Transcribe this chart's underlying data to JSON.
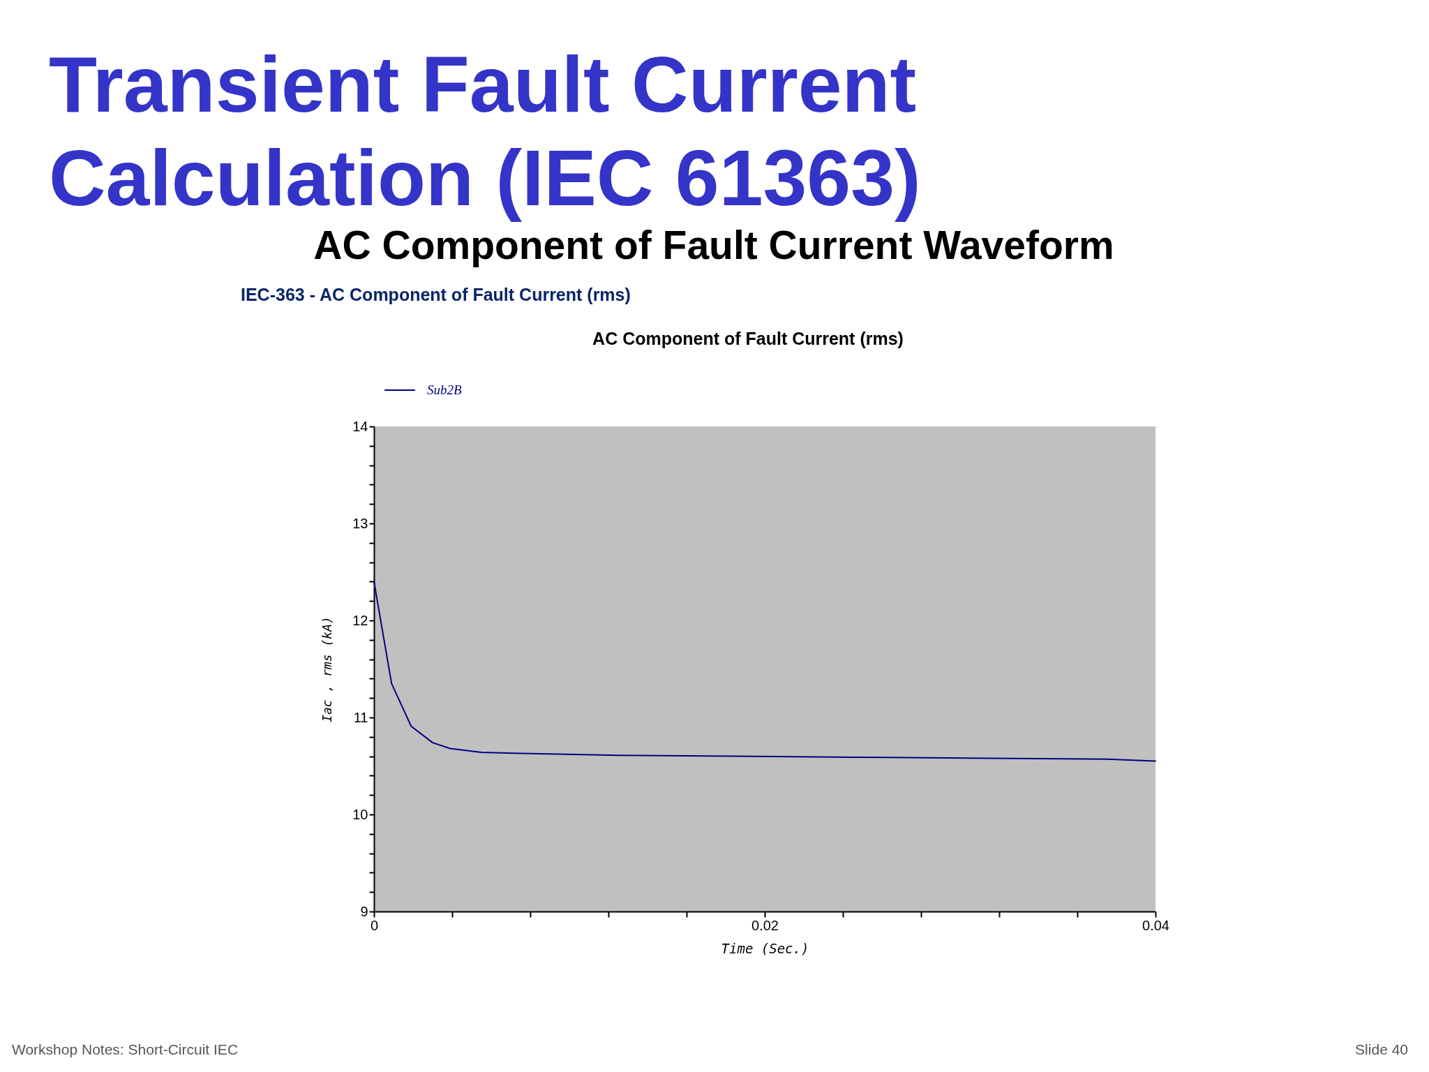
{
  "chart_data": {
    "type": "line",
    "title": "Transient Fault Current Calculation (IEC 61363)",
    "subtitle": "AC Component of Fault Current Waveform",
    "xlabel": "Time (Sec.)",
    "ylabel": "Iac , rms (kA)",
    "annotations": [
      "IEC-363 - AC Component of Fault Current (rms)",
      "AC Component of Fault Current (rms)",
      "Workshop Notes: Short-Circuit IEC",
      "Slide 40"
    ],
    "x": [
      0,
      0.0009,
      0.0019,
      0.003,
      0.0039,
      0.0047,
      0.0055,
      0.0075,
      0.0125,
      0.0185,
      0.0245,
      0.0315,
      0.0375,
      0.04
    ],
    "series": [
      {
        "name": "Sub2B",
        "color": "#000080",
        "values": [
          12.4,
          11.35,
          10.91,
          10.74,
          10.68,
          10.66,
          10.64,
          10.63,
          10.61,
          10.6,
          10.59,
          10.58,
          10.57,
          10.55
        ]
      }
    ],
    "xlim": [
      0,
      0.04
    ],
    "ylim": [
      9,
      14
    ],
    "xticks": [
      0,
      {
        "value": 0.004,
        "label": null
      },
      {
        "value": 0.008,
        "label": null
      },
      {
        "value": 0.012,
        "label": null
      },
      {
        "value": 0.016,
        "label": null
      },
      0.02,
      {
        "value": 0.024,
        "label": null
      },
      {
        "value": 0.028,
        "label": null
      },
      {
        "value": 0.032,
        "label": null
      },
      {
        "value": 0.036,
        "label": null
      },
      0.04
    ],
    "yticks": [
      9,
      {
        "value": 9.2,
        "label": null
      },
      {
        "value": 9.4,
        "label": null
      },
      {
        "value": 9.6,
        "label": null
      },
      {
        "value": 9.8,
        "label": null
      },
      10,
      {
        "value": 10.2,
        "label": null
      },
      {
        "value": 10.4,
        "label": null
      },
      {
        "value": 10.6,
        "label": null
      },
      {
        "value": 10.8,
        "label": null
      },
      11,
      {
        "value": 11.2,
        "label": null
      },
      {
        "value": 11.4,
        "label": null
      },
      {
        "value": 11.6,
        "label": null
      },
      {
        "value": 11.8,
        "label": null
      },
      12,
      {
        "value": 12.2,
        "label": null
      },
      {
        "value": 12.4,
        "label": null
      },
      {
        "value": 12.6,
        "label": null
      },
      {
        "value": 12.8,
        "label": null
      },
      13,
      {
        "value": 13.2,
        "label": null
      },
      {
        "value": 13.4,
        "label": null
      },
      {
        "value": 13.6,
        "label": null
      },
      {
        "value": 13.8,
        "label": null
      },
      14
    ],
    "legend": "top left",
    "line_style": "solid"
  }
}
